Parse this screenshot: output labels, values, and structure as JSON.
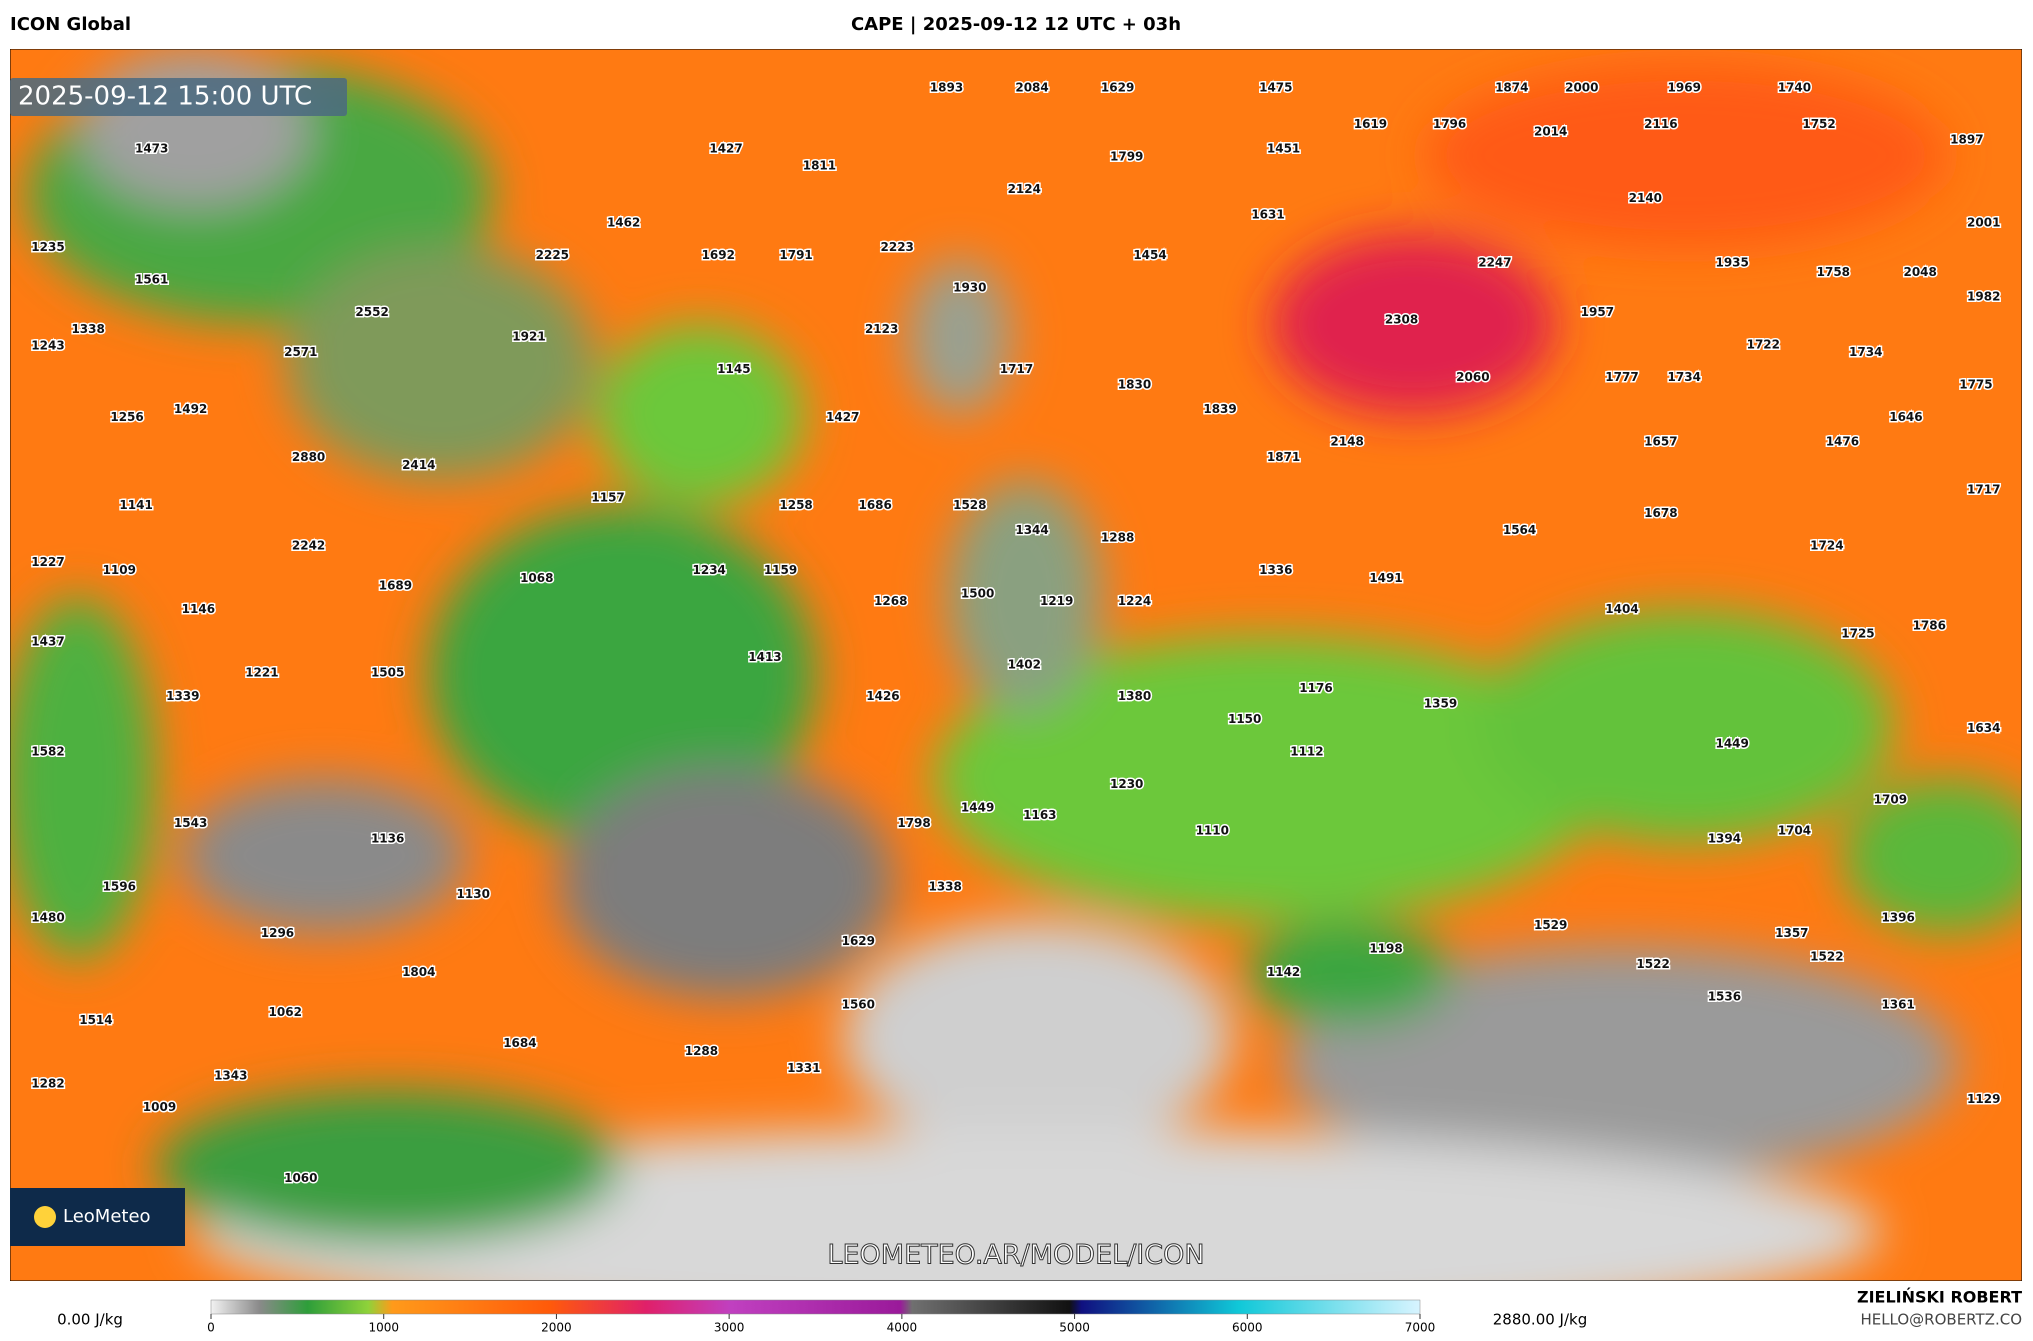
{
  "header": {
    "model": "ICON Global",
    "title": "CAPE | 2025-09-12 12 UTC + 03h"
  },
  "map": {
    "valid_time": "2025-09-12 15:00 UTC",
    "watermark": "LEOMETEO.AR/MODEL/ICON",
    "logo": "LeoMeteo",
    "cape_labels": [
      1893,
      2084,
      1629,
      1475,
      1874,
      2000,
      1969,
      1740,
      1473,
      1427,
      1811,
      1799,
      1451,
      1619,
      1796,
      2014,
      2116,
      1752,
      1897,
      2124,
      2140,
      1462,
      1631,
      2001,
      1235,
      2225,
      1692,
      1791,
      2223,
      1454,
      2247,
      1935,
      1758,
      2048,
      1561,
      1930,
      1982,
      1338,
      2552,
      1921,
      2123,
      2308,
      1957,
      1243,
      2571,
      1145,
      1717,
      1830,
      2060,
      1777,
      1734,
      1722,
      1734,
      1775,
      1256,
      1492,
      1427,
      1839,
      1646,
      2880,
      2414,
      1871,
      2148,
      1657,
      1476,
      1157,
      1141,
      1258,
      1686,
      1528,
      1717,
      1344,
      1288,
      1564,
      1678,
      1724,
      1227,
      2242,
      1109,
      1068,
      1234,
      1159,
      1336,
      1491,
      1689,
      1500,
      1268,
      1219,
      1224,
      1404,
      1146,
      1437,
      1725,
      1786,
      1505,
      1221,
      1413,
      1402,
      1176,
      1339,
      1426,
      1380,
      1359,
      1150,
      1634,
      1582,
      1112,
      1449,
      1230,
      1709,
      1543,
      1798,
      1449,
      1163,
      1110,
      1394,
      1704,
      1136,
      1596,
      1338,
      1130,
      1480,
      1296,
      1529,
      1396,
      1357,
      1629,
      1804,
      1142,
      1198,
      1522,
      1522,
      1062,
      1560,
      1536,
      1361,
      1514,
      1684,
      1288,
      1331,
      1343,
      1282,
      1009,
      1129,
      1060
    ]
  },
  "legend": {
    "min_label": "0.00 J/kg",
    "max_label": "2880.00 J/kg",
    "range": [
      0,
      7000
    ],
    "ticks": [
      0,
      1000,
      2000,
      3000,
      4000,
      5000,
      6000,
      7000
    ]
  },
  "footer": {
    "author": "ZIELIŃSKI ROBERT",
    "contact": "HELLO@ROBERTZ.CO"
  }
}
